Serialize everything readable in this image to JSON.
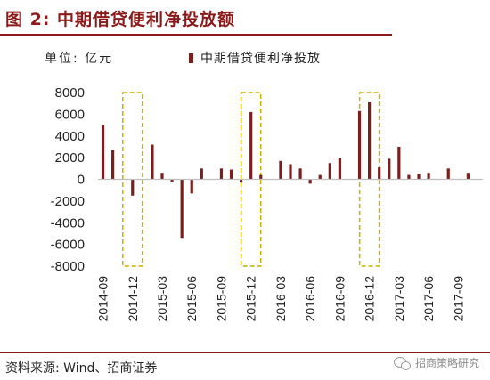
{
  "header": {
    "title": "图 2:   中期借贷便利净投放额"
  },
  "chart_meta": {
    "unit_label": "单位:  亿元"
  },
  "footer": {
    "source": "资料来源: Wind、招商证券",
    "watermark": "招商策略研究"
  },
  "colors": {
    "bar": "#7a1f1f",
    "highlight": "#c8b400",
    "accent": "#8b1a1a"
  },
  "chart_data": {
    "type": "bar",
    "title": "图 2:   中期借贷便利净投放额",
    "ylabel": "单位:  亿元",
    "ylim": [
      -8000,
      8000
    ],
    "yticks": [
      -8000,
      -6000,
      -4000,
      -2000,
      0,
      2000,
      4000,
      6000,
      8000
    ],
    "tick_labels": [
      "2014-09",
      "2014-12",
      "2015-03",
      "2015-06",
      "2015-09",
      "2015-12",
      "2016-03",
      "2016-06",
      "2016-09",
      "2016-12",
      "2017-03",
      "2017-06",
      "2017-09"
    ],
    "series": [
      {
        "name": "中期借贷便利净投放",
        "categories": [
          "2014-09",
          "2014-10",
          "2014-11",
          "2014-12",
          "2015-01",
          "2015-02",
          "2015-03",
          "2015-04",
          "2015-05",
          "2015-06",
          "2015-07",
          "2015-08",
          "2015-09",
          "2015-10",
          "2015-11",
          "2015-12",
          "2016-01",
          "2016-02",
          "2016-03",
          "2016-04",
          "2016-05",
          "2016-06",
          "2016-07",
          "2016-08",
          "2016-09",
          "2016-10",
          "2016-11",
          "2016-12",
          "2017-01",
          "2017-02",
          "2017-03",
          "2017-04",
          "2017-05",
          "2017-06",
          "2017-07",
          "2017-08",
          "2017-09",
          "2017-10",
          "2017-11"
        ],
        "values": [
          5000,
          2700,
          0,
          -1500,
          0,
          3200,
          600,
          -200,
          -5400,
          -1300,
          1000,
          0,
          1000,
          900,
          -300,
          6200,
          400,
          0,
          1700,
          1400,
          1000,
          -400,
          400,
          1500,
          2000,
          0,
          6300,
          7100,
          1100,
          1900,
          3000,
          400,
          500,
          600,
          0,
          1000,
          0,
          600,
          0
        ]
      }
    ],
    "highlights": [
      "2014-12",
      "2015-12",
      "2016-12"
    ],
    "legend": {
      "position": "top"
    },
    "grid": false
  }
}
